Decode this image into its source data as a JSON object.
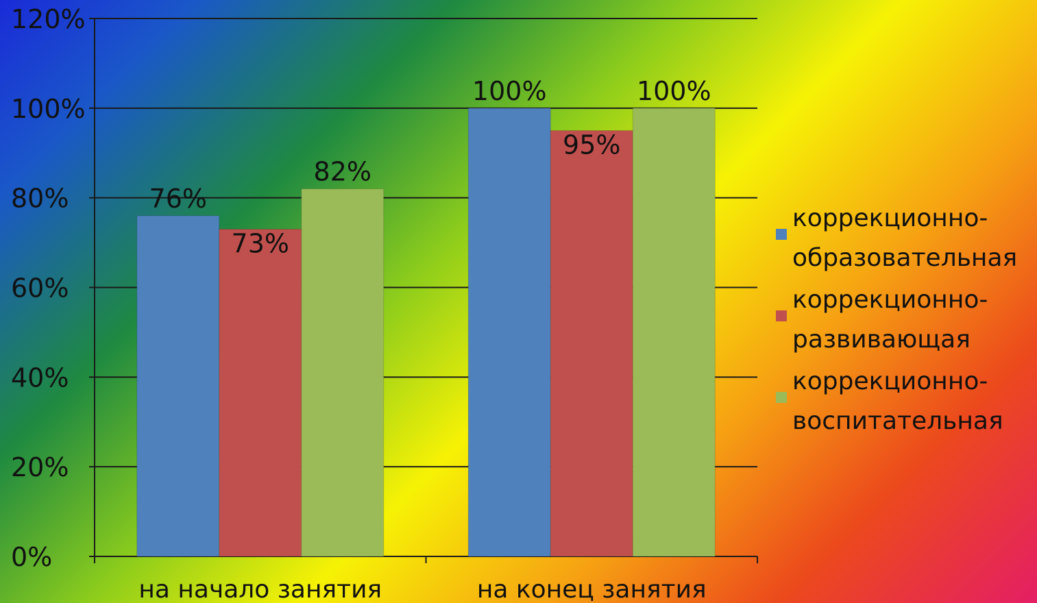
{
  "chart_data": {
    "type": "bar",
    "categories": [
      "на начало занятия",
      "на конец занятия"
    ],
    "series": [
      {
        "name": "коррекционно-образовательная",
        "values": [
          76,
          100
        ],
        "labels": [
          "76%",
          "100%"
        ],
        "color": "#4f81bd"
      },
      {
        "name": "коррекционно-развивающая",
        "values": [
          73,
          95
        ],
        "labels": [
          "73%",
          "95%"
        ],
        "color": "#c0504d"
      },
      {
        "name": "коррекционно-воспитательная",
        "values": [
          82,
          100
        ],
        "labels": [
          "82%",
          "100%"
        ],
        "color": "#9bbb59"
      }
    ],
    "ylim": [
      0,
      120
    ],
    "yticks": [
      "0%",
      "20%",
      "40%",
      "60%",
      "80%",
      "100%",
      "120%"
    ],
    "grid": true,
    "legend_position": "right"
  }
}
